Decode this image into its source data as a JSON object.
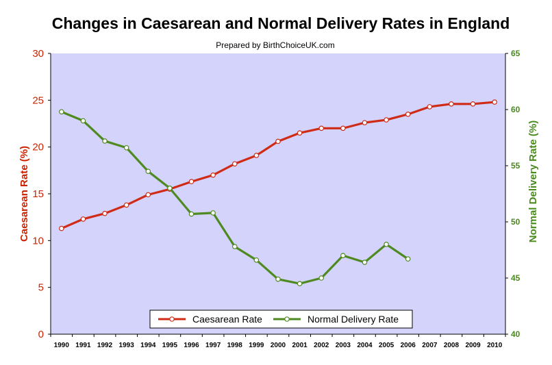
{
  "chart_data": {
    "type": "line",
    "title": "Changes in Caesarean and Normal Delivery Rates in England",
    "subtitle": "Prepared by BirthChoiceUK.com",
    "x": [
      1990,
      1991,
      1992,
      1993,
      1994,
      1995,
      1996,
      1997,
      1998,
      1999,
      2000,
      2001,
      2002,
      2003,
      2004,
      2005,
      2006,
      2007,
      2008,
      2009,
      2010
    ],
    "ylabel_left": "Caesarean Rate (%)",
    "ylabel_right": "Normal Delivery Rate (%)",
    "ylim_left": [
      0,
      30
    ],
    "ylim_right": [
      40,
      65
    ],
    "yticks_left": [
      0,
      5,
      10,
      15,
      20,
      25,
      30
    ],
    "yticks_right": [
      40,
      45,
      50,
      55,
      60,
      65
    ],
    "grid": false,
    "legend_position": "bottom-center",
    "series": [
      {
        "name": "Caesarean Rate",
        "axis": "left",
        "color": "#d02b16",
        "values": [
          11.3,
          12.3,
          12.9,
          13.8,
          14.9,
          15.5,
          16.3,
          17.0,
          18.2,
          19.1,
          20.6,
          21.5,
          22.0,
          22.0,
          22.6,
          22.9,
          23.5,
          24.3,
          24.6,
          24.6,
          24.8
        ]
      },
      {
        "name": "Normal Delivery Rate",
        "axis": "right",
        "color": "#4e8a20",
        "values": [
          59.8,
          59.0,
          57.2,
          56.6,
          54.5,
          53.0,
          50.7,
          50.8,
          47.8,
          46.6,
          44.9,
          44.5,
          45.0,
          47.0,
          46.4,
          48.0,
          46.7,
          null,
          null,
          null,
          null
        ]
      }
    ],
    "plot_background": "#d3d3fb"
  }
}
